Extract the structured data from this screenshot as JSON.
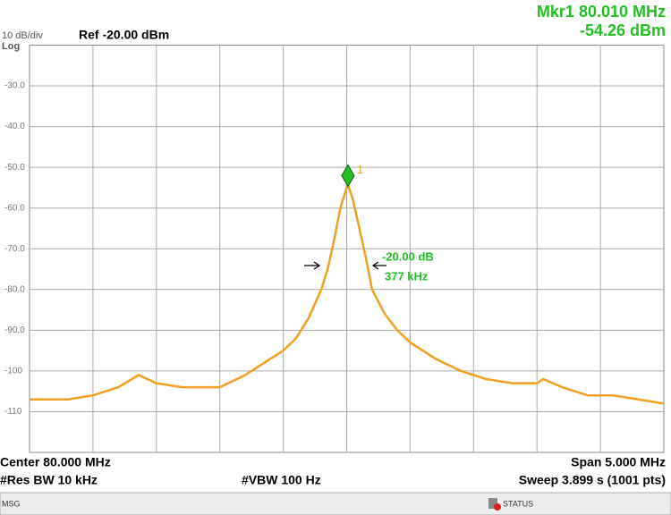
{
  "chart_data": {
    "type": "line",
    "scale_label": "10 dB/div",
    "scale_type": "Log",
    "ref_label": "Ref -20.00 dBm",
    "x": [
      77.5,
      77.8,
      78.0,
      78.2,
      78.36,
      78.5,
      78.7,
      78.9,
      79.0,
      79.2,
      79.4,
      79.5,
      79.6,
      79.7,
      79.8,
      79.85,
      79.9,
      79.95,
      80.0,
      80.01,
      80.05,
      80.1,
      80.15,
      80.2,
      80.3,
      80.4,
      80.5,
      80.7,
      80.9,
      81.1,
      81.3,
      81.5,
      81.55,
      81.7,
      81.9,
      82.1,
      82.3,
      82.5
    ],
    "series": [
      {
        "color": "#f0a020",
        "values": [
          -107,
          -107,
          -106,
          -104,
          -101,
          -103,
          -104,
          -104,
          -104,
          -101,
          -97,
          -95,
          -92,
          -87,
          -80,
          -75,
          -68,
          -60,
          -55,
          -54.26,
          -58,
          -65,
          -72,
          -80,
          -86,
          -90,
          -93,
          -97,
          -100,
          -102,
          -103,
          -103,
          -102,
          -104,
          -106,
          -106,
          -107,
          -108
        ]
      }
    ],
    "xlim": [
      77.5,
      82.5
    ],
    "ylim": [
      -120,
      -20
    ],
    "yticks": [
      {
        "value": -30,
        "label": "-30.0"
      },
      {
        "value": -40,
        "label": "-40.0"
      },
      {
        "value": -50,
        "label": "-50.0"
      },
      {
        "value": -60,
        "label": "-60.0"
      },
      {
        "value": -70,
        "label": "-70.0"
      },
      {
        "value": -80,
        "label": "-80.0"
      },
      {
        "value": -90,
        "label": "-90.0"
      },
      {
        "value": -100,
        "label": "-100"
      },
      {
        "value": -110,
        "label": "-110"
      }
    ],
    "grid": true,
    "marker": {
      "label": "1",
      "x": 80.01,
      "y": -54.26,
      "color": "#22c022",
      "freq_label": "Mkr1 80.010 MHz",
      "amp_label": "-54.26 dBm"
    },
    "bandwidth": {
      "level_label": "-20.00 dB",
      "width_label": "377 kHz"
    },
    "footer": {
      "center": "Center 80.000 MHz",
      "rbw": "#Res BW 10 kHz",
      "vbw": "#VBW 100 Hz",
      "span": "Span 5.000 MHz",
      "sweep": "Sweep  3.899 s (1001 pts)"
    },
    "status_bar": {
      "msg": "MSG",
      "status": "STATUS"
    }
  }
}
